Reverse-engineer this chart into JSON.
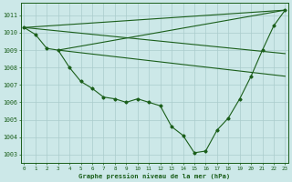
{
  "title": "Graphe pression niveau de la mer (hPa)",
  "background_color": "#cce8e8",
  "grid_color": "#aacccc",
  "line_color": "#1a5e1a",
  "xlim": [
    -0.3,
    23.3
  ],
  "ylim": [
    1002.5,
    1011.7
  ],
  "yticks": [
    1003,
    1004,
    1005,
    1006,
    1007,
    1008,
    1009,
    1010,
    1011
  ],
  "xticks": [
    0,
    1,
    2,
    3,
    4,
    5,
    6,
    7,
    8,
    9,
    10,
    11,
    12,
    13,
    14,
    15,
    16,
    17,
    18,
    19,
    20,
    21,
    22,
    23
  ],
  "main_series": [
    1010.3,
    1009.9,
    1009.1,
    1009.0,
    1008.0,
    1007.2,
    1006.8,
    1006.3,
    1006.2,
    1006.0,
    1006.2,
    1006.0,
    1005.8,
    1004.6,
    1004.1,
    1003.1,
    1003.2,
    1004.4,
    1005.1,
    1006.2,
    1007.5,
    1009.0,
    1010.4,
    1011.3
  ],
  "fan_lines": [
    {
      "x": [
        0,
        23
      ],
      "y": [
        1010.3,
        1011.3
      ]
    },
    {
      "x": [
        3,
        23
      ],
      "y": [
        1009.0,
        1011.3
      ]
    },
    {
      "x": [
        0,
        23
      ],
      "y": [
        1010.3,
        1008.8
      ]
    },
    {
      "x": [
        3,
        23
      ],
      "y": [
        1009.0,
        1007.5
      ]
    }
  ]
}
